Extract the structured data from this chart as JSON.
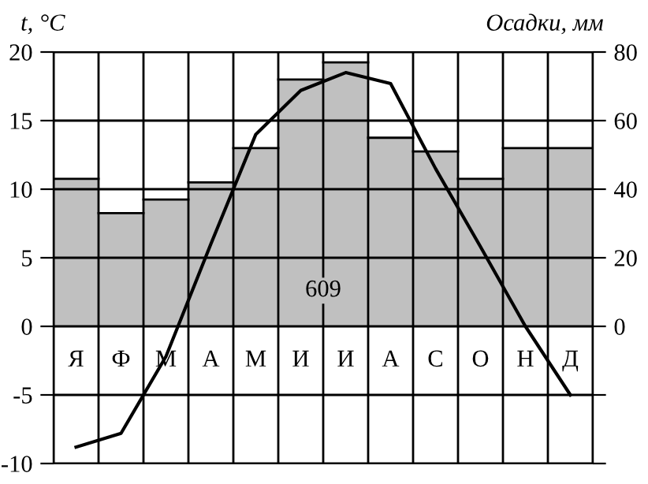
{
  "chart_data": {
    "type": "bar",
    "ylabel": "t, °C",
    "y2label": "Осадки, мм",
    "categories": [
      "Я",
      "Ф",
      "М",
      "А",
      "М",
      "И",
      "И",
      "А",
      "С",
      "О",
      "Н",
      "Д"
    ],
    "series": [
      {
        "axis": "y2",
        "color": "#c0c0c0",
        "values": [
          43,
          33,
          37,
          42,
          52,
          72,
          77,
          55,
          51,
          43,
          52,
          52
        ]
      },
      {
        "type": "line",
        "axis": "y",
        "color": "#000000",
        "values": [
          -8.8,
          -7.8,
          -2.2,
          6,
          14,
          17.2,
          18.5,
          17.7,
          11.5,
          5.8,
          0,
          -5
        ]
      }
    ],
    "ylim": [
      -10,
      20
    ],
    "yticks": [
      -10,
      -5,
      0,
      5,
      10,
      15,
      20
    ],
    "y2lim": [
      -40,
      80
    ],
    "y2ticks": [
      {
        "value": -40,
        "label": null
      },
      {
        "value": -20,
        "label": null
      },
      0,
      20,
      40,
      60,
      80
    ],
    "grid": true,
    "marker": "none",
    "line_style": "solid",
    "annotations": [
      "609"
    ]
  }
}
